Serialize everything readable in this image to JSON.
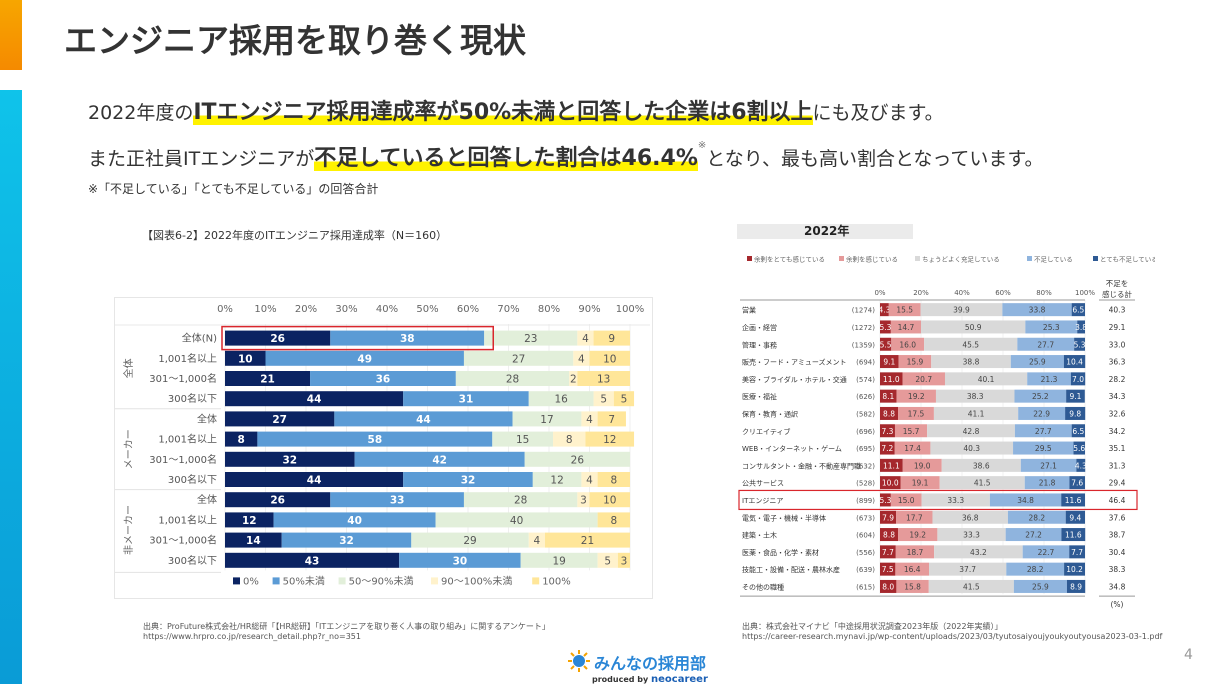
{
  "slide": {
    "title": "エンジニア採用を取り巻く現状",
    "line1_pre": "2022年度の",
    "line1_hl": "ITエンジニア採用達成率が50%未満と回答した企業は6割以上",
    "line1_post": "にも及びます。",
    "line2_pre": "また正社員ITエンジニアが",
    "line2_hl": "不足していると回答した割合は46.4%",
    "line2_sup": "※",
    "line2_post": "となり、最も高い割合となっています。",
    "note": "※「不足している」「とても不足している」の回答合計",
    "page_number": "4",
    "logo_main": "みんなの採用部",
    "logo_sub_prefix": "produced by ",
    "logo_sub_brand": "neocareer"
  },
  "sources": {
    "left_line1": "出典：ProFuture株式会社/HR総研「【HR総研】「ITエンジニアを取り巻く人事の取り組み」に関するアンケート」",
    "left_line2": "https://www.hrpro.co.jp/research_detail.php?r_no=351",
    "right_line1": "出典：株式会社マイナビ「中途採用状況調査2023年版（2022年実績）」",
    "right_line2": "https://career-research.mynavi.jp/wp-content/uploads/2023/03/tyutosaiyoujyoukyoutyousa2023-03-1.pdf"
  },
  "chart_data": [
    {
      "type": "bar",
      "orientation": "horizontal-stacked-100",
      "title": "【図表6-2】2022年度のITエンジニア採用達成率（N＝160）",
      "xlim": [
        0,
        100
      ],
      "xticks": [
        "0%",
        "10%",
        "20%",
        "30%",
        "40%",
        "50%",
        "60%",
        "70%",
        "80%",
        "90%",
        "100%"
      ],
      "groups": [
        "全体",
        "メーカー",
        "非メーカー"
      ],
      "categories": [
        {
          "group": "全体",
          "label": "全体(N)",
          "highlight": true
        },
        {
          "group": "全体",
          "label": "1,001名以上"
        },
        {
          "group": "全体",
          "label": "301～1,000名"
        },
        {
          "group": "全体",
          "label": "300名以下"
        },
        {
          "group": "メーカー",
          "label": "全体"
        },
        {
          "group": "メーカー",
          "label": "1,001名以上"
        },
        {
          "group": "メーカー",
          "label": "301～1,000名"
        },
        {
          "group": "メーカー",
          "label": "300名以下"
        },
        {
          "group": "非メーカー",
          "label": "全体"
        },
        {
          "group": "非メーカー",
          "label": "1,001名以上"
        },
        {
          "group": "非メーカー",
          "label": "301～1,000名"
        },
        {
          "group": "非メーカー",
          "label": "300名以下"
        }
      ],
      "series": [
        {
          "name": "0%",
          "color": "#0b2362",
          "label_color": "#ffffff",
          "values": [
            26,
            10,
            21,
            44,
            27,
            8,
            32,
            44,
            26,
            12,
            14,
            43
          ]
        },
        {
          "name": "50%未満",
          "color": "#5b9bd5",
          "label_color": "#ffffff",
          "values": [
            38,
            49,
            36,
            31,
            44,
            58,
            42,
            32,
            33,
            40,
            32,
            30
          ]
        },
        {
          "name": "50～90%未満",
          "color": "#e2efda",
          "label_color": "#555555",
          "values": [
            23,
            27,
            28,
            16,
            17,
            15,
            26,
            12,
            28,
            40,
            29,
            19
          ]
        },
        {
          "name": "90～100%未満",
          "color": "#fff2cc",
          "label_color": "#555555",
          "values": [
            4,
            4,
            2,
            5,
            4,
            8,
            0,
            4,
            3,
            0,
            4,
            5
          ]
        },
        {
          "name": "100%",
          "color": "#ffe699",
          "label_color": "#555555",
          "values": [
            9,
            10,
            13,
            5,
            7,
            12,
            0,
            8,
            10,
            8,
            21,
            3
          ]
        }
      ],
      "legend_position": "bottom"
    },
    {
      "type": "bar",
      "orientation": "horizontal-stacked-100",
      "title": "2022年",
      "xlim": [
        0,
        100
      ],
      "xticks": [
        "0%",
        "20%",
        "40%",
        "60%",
        "80%",
        "100%"
      ],
      "total_column_header": "不足を感じる計",
      "unit_note": "(%)",
      "categories": [
        {
          "label": "営業",
          "n": "(1274)",
          "total": "40.3"
        },
        {
          "label": "企画・経営",
          "n": "(1272)",
          "total": "29.1"
        },
        {
          "label": "管理・事務",
          "n": "(1359)",
          "total": "33.0"
        },
        {
          "label": "販売・フード・アミューズメント",
          "n": "(694)",
          "total": "36.3"
        },
        {
          "label": "美容・ブライダル・ホテル・交通",
          "n": "(574)",
          "total": "28.2"
        },
        {
          "label": "医療・福祉",
          "n": "(626)",
          "total": "34.3"
        },
        {
          "label": "保育・教育・通訳",
          "n": "(582)",
          "total": "32.6"
        },
        {
          "label": "クリエイティブ",
          "n": "(696)",
          "total": "34.2"
        },
        {
          "label": "WEB・インターネット・ゲーム",
          "n": "(695)",
          "total": "35.1"
        },
        {
          "label": "コンサルタント・金融・不動産専門職",
          "n": "(632)",
          "total": "31.3"
        },
        {
          "label": "公共サービス",
          "n": "(528)",
          "total": "29.4"
        },
        {
          "label": "ITエンジニア",
          "n": "(899)",
          "total": "46.4",
          "highlight": true
        },
        {
          "label": "電気・電子・機械・半導体",
          "n": "(673)",
          "total": "37.6"
        },
        {
          "label": "建築・土木",
          "n": "(604)",
          "total": "38.7"
        },
        {
          "label": "医薬・食品・化学・素材",
          "n": "(556)",
          "total": "30.4"
        },
        {
          "label": "技能工・設備・配送・農林水産",
          "n": "(639)",
          "total": "38.3"
        },
        {
          "label": "その他の職種",
          "n": "(615)",
          "total": "34.8"
        }
      ],
      "series": [
        {
          "name": "余剰をとても感じている",
          "color": "#a5282d",
          "label_color": "#ffffff",
          "values": [
            4.3,
            5.3,
            5.5,
            9.1,
            11.0,
            8.1,
            8.8,
            7.3,
            7.2,
            11.1,
            10.0,
            5.3,
            7.9,
            8.8,
            7.7,
            7.5,
            8.0
          ]
        },
        {
          "name": "余剰を感じている",
          "color": "#e59a9a",
          "label_color": "#444444",
          "values": [
            15.5,
            14.7,
            16.0,
            15.9,
            20.7,
            19.2,
            17.5,
            15.7,
            17.4,
            19.0,
            19.1,
            15.0,
            17.7,
            19.2,
            18.7,
            16.4,
            15.8
          ]
        },
        {
          "name": "ちょうどよく充足している",
          "color": "#d9d9d9",
          "label_color": "#444444",
          "values": [
            39.9,
            50.9,
            45.5,
            38.8,
            40.1,
            38.3,
            41.1,
            42.8,
            40.3,
            38.6,
            41.5,
            33.3,
            36.8,
            33.3,
            43.2,
            37.7,
            41.5
          ]
        },
        {
          "name": "不足している",
          "color": "#8fb4de",
          "label_color": "#444444",
          "values": [
            33.8,
            25.3,
            27.7,
            25.9,
            21.3,
            25.2,
            22.9,
            27.7,
            29.5,
            27.1,
            21.8,
            34.8,
            28.2,
            27.2,
            22.7,
            28.2,
            25.9
          ]
        },
        {
          "name": "とても不足している",
          "color": "#2e5a94",
          "label_color": "#ffffff",
          "values": [
            6.5,
            3.8,
            5.3,
            10.4,
            7.0,
            9.1,
            9.8,
            6.5,
            5.6,
            4.3,
            7.6,
            11.6,
            9.4,
            11.6,
            7.7,
            10.2,
            8.9
          ]
        }
      ],
      "legend_position": "top"
    }
  ]
}
